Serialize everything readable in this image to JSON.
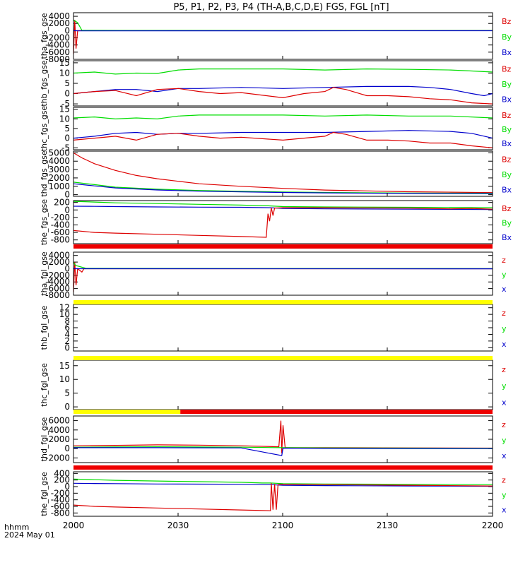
{
  "title": "P5, P1, P2, P3, P4 (TH-A,B,C,D,E) FGS, FGL [nT]",
  "x_axis": {
    "tick_labels": [
      "2000",
      "2030",
      "2100",
      "2130",
      "2200"
    ],
    "units_label": "hhmm",
    "date_label": "2024 May 01"
  },
  "colors": {
    "bx": "#0000cc",
    "by": "#00dd00",
    "bz": "#dd0000",
    "bar_red": "#ee0000",
    "bar_yellow": "#ffff00",
    "frame": "#000000"
  },
  "chart_data": [
    {
      "type": "line",
      "ylabel": "tha_fgs_gse",
      "yticks": [
        "4000",
        "2000",
        "0",
        "-2000",
        "-4000",
        "-6000",
        "-8000"
      ],
      "ylim": [
        -8000,
        5000
      ],
      "legend": [
        "Bz",
        "By",
        "Bx"
      ],
      "legend_colors": [
        "#dd0000",
        "#00dd00",
        "#0000cc"
      ],
      "series": [
        {
          "name": "Bz",
          "x": [
            0,
            0.003,
            0.006,
            0.01,
            0.015,
            1
          ],
          "y": [
            -6500,
            3000,
            -5000,
            0,
            0,
            0
          ]
        },
        {
          "name": "By",
          "x": [
            0,
            0.01,
            0.02,
            0.11,
            0.5,
            1
          ],
          "y": [
            3000,
            2200,
            100,
            60,
            30,
            40
          ]
        },
        {
          "name": "Bx",
          "x": [
            0,
            0.01,
            0.5,
            1
          ],
          "y": [
            0,
            -60,
            -40,
            -30
          ]
        }
      ]
    },
    {
      "type": "line",
      "ylabel": "thb_fgs_gse",
      "yticks": [
        "15",
        "10",
        "5",
        "0",
        "-5"
      ],
      "ylim": [
        -6,
        16
      ],
      "legend": [
        "Bz",
        "By",
        "Bx"
      ],
      "legend_colors": [
        "#dd0000",
        "#00dd00",
        "#0000cc"
      ],
      "series": [
        {
          "name": "By",
          "x": [
            0,
            0.05,
            0.1,
            0.15,
            0.2,
            0.25,
            0.3,
            0.4,
            0.5,
            0.6,
            0.7,
            0.8,
            0.9,
            0.95,
            1
          ],
          "y": [
            10,
            10.5,
            9.5,
            10,
            9.8,
            11.5,
            12,
            12,
            12,
            11.5,
            12,
            11.8,
            11.5,
            11,
            10.5
          ]
        },
        {
          "name": "Bx",
          "x": [
            0,
            0.05,
            0.1,
            0.15,
            0.2,
            0.25,
            0.3,
            0.4,
            0.5,
            0.6,
            0.7,
            0.8,
            0.85,
            0.9,
            0.95,
            0.98,
            1
          ],
          "y": [
            0,
            1,
            2,
            2,
            1,
            2.5,
            2.5,
            3,
            2.5,
            3,
            3.5,
            3.5,
            3,
            2,
            0,
            -1,
            0
          ]
        },
        {
          "name": "Bz",
          "x": [
            0,
            0.05,
            0.1,
            0.15,
            0.2,
            0.25,
            0.3,
            0.35,
            0.4,
            0.5,
            0.55,
            0.6,
            0.62,
            0.65,
            0.7,
            0.75,
            0.8,
            0.85,
            0.9,
            0.95,
            1
          ],
          "y": [
            0,
            1,
            1.5,
            -1,
            2,
            2.5,
            1,
            0,
            0.5,
            -2,
            0,
            1,
            3,
            2,
            -1,
            -1,
            -1.5,
            -2.5,
            -3,
            -4.5,
            -5
          ]
        }
      ]
    },
    {
      "type": "line",
      "ylabel": "thc_fgs_gse",
      "yticks": [
        "15",
        "10",
        "5",
        "0",
        "-5"
      ],
      "ylim": [
        -6,
        16
      ],
      "legend": [
        "Bz",
        "By",
        "Bx"
      ],
      "legend_colors": [
        "#dd0000",
        "#00dd00",
        "#0000cc"
      ],
      "series": [
        {
          "name": "By",
          "x": [
            0,
            0.05,
            0.1,
            0.15,
            0.2,
            0.25,
            0.3,
            0.4,
            0.5,
            0.6,
            0.7,
            0.8,
            0.9,
            1
          ],
          "y": [
            10.5,
            11,
            10,
            10.5,
            10,
            11.5,
            12,
            12,
            12,
            11.5,
            12,
            11.5,
            11.5,
            10.5
          ]
        },
        {
          "name": "Bx",
          "x": [
            0,
            0.05,
            0.1,
            0.15,
            0.2,
            0.25,
            0.3,
            0.4,
            0.5,
            0.6,
            0.7,
            0.8,
            0.9,
            0.95,
            1
          ],
          "y": [
            0,
            1,
            2.5,
            3,
            2,
            2.5,
            2.5,
            3,
            3,
            3,
            3.5,
            4,
            3.5,
            2.5,
            0
          ]
        },
        {
          "name": "Bz",
          "x": [
            0,
            0.05,
            0.1,
            0.15,
            0.2,
            0.25,
            0.3,
            0.35,
            0.4,
            0.5,
            0.55,
            0.6,
            0.62,
            0.65,
            0.7,
            0.75,
            0.8,
            0.85,
            0.9,
            0.95,
            1
          ],
          "y": [
            -1,
            0,
            1,
            -1,
            2,
            2.5,
            1,
            0,
            0.5,
            -1,
            0,
            1,
            3,
            2,
            -1,
            -1,
            -1.5,
            -2.5,
            -2.5,
            -4,
            -5
          ]
        }
      ]
    },
    {
      "type": "line",
      "ylabel": "thd_fgs_gse",
      "yticks": [
        "5000",
        "4000",
        "3000",
        "2000",
        "1000",
        "0"
      ],
      "ylim": [
        -200,
        5200
      ],
      "legend": [
        "Bz",
        "By",
        "Bx"
      ],
      "legend_colors": [
        "#dd0000",
        "#00dd00",
        "#0000cc"
      ],
      "series": [
        {
          "name": "Bz",
          "x": [
            0,
            0.02,
            0.05,
            0.1,
            0.15,
            0.2,
            0.25,
            0.3,
            0.4,
            0.5,
            0.6,
            0.7,
            0.8,
            0.9,
            1
          ],
          "y": [
            5000,
            4400,
            3700,
            2900,
            2300,
            1900,
            1600,
            1300,
            1000,
            750,
            550,
            450,
            350,
            300,
            250
          ]
        },
        {
          "name": "By",
          "x": [
            0,
            0.05,
            0.1,
            0.2,
            0.3,
            0.4,
            0.5,
            0.6,
            0.8,
            1
          ],
          "y": [
            1500,
            1200,
            900,
            650,
            500,
            400,
            320,
            260,
            200,
            170
          ]
        },
        {
          "name": "Bx",
          "x": [
            0,
            0.05,
            0.1,
            0.2,
            0.3,
            0.4,
            0.5,
            0.6,
            0.8,
            1
          ],
          "y": [
            1300,
            1050,
            800,
            560,
            420,
            330,
            260,
            210,
            150,
            120
          ]
        }
      ]
    },
    {
      "type": "line",
      "ylabel": "the_fgs_gse",
      "yticks": [
        "200",
        "0",
        "-200",
        "-400",
        "-600",
        "-800"
      ],
      "ylim": [
        -900,
        250
      ],
      "legend": [
        "Bz",
        "By",
        "Bx"
      ],
      "legend_colors": [
        "#dd0000",
        "#00dd00",
        "#0000cc"
      ],
      "series": [
        {
          "name": "By",
          "x": [
            0,
            0.05,
            0.1,
            0.2,
            0.3,
            0.4,
            0.45,
            0.465,
            0.5,
            0.6,
            0.8,
            1
          ],
          "y": [
            230,
            210,
            190,
            170,
            150,
            130,
            110,
            110,
            90,
            80,
            70,
            60
          ]
        },
        {
          "name": "Bx",
          "x": [
            0,
            0.05,
            0.1,
            0.2,
            0.3,
            0.4,
            0.47,
            0.5,
            0.6,
            0.8,
            1
          ],
          "y": [
            100,
            95,
            90,
            80,
            75,
            70,
            60,
            40,
            30,
            20,
            10
          ]
        },
        {
          "name": "Bz",
          "x": [
            0,
            0.05,
            0.1,
            0.2,
            0.3,
            0.4,
            0.46,
            0.464,
            0.468,
            0.472,
            0.476,
            0.48,
            0.5,
            0.6,
            0.8,
            0.9,
            0.95,
            1
          ],
          "y": [
            -550,
            -600,
            -620,
            -650,
            -680,
            -710,
            -730,
            -100,
            -300,
            60,
            -150,
            50,
            60,
            60,
            50,
            30,
            40,
            20
          ]
        }
      ]
    },
    {
      "type": "line",
      "ylabel": "tha_fgl_gse",
      "yticks": [
        "4000",
        "2000",
        "0",
        "-2000",
        "-4000",
        "-6000",
        "-8000"
      ],
      "ylim": [
        -8000,
        5000
      ],
      "legend": [
        "z",
        "y",
        "x"
      ],
      "legend_colors": [
        "#dd0000",
        "#00dd00",
        "#0000cc"
      ],
      "series": [
        {
          "name": "z",
          "x": [
            0,
            0.003,
            0.006,
            0.01,
            0.02,
            0.025,
            1
          ],
          "y": [
            -7000,
            2000,
            -5000,
            0,
            -1000,
            0,
            0
          ]
        },
        {
          "name": "y",
          "x": [
            0,
            0.005,
            0.03,
            0.4,
            1
          ],
          "y": [
            2000,
            1000,
            100,
            60,
            40
          ]
        },
        {
          "name": "x",
          "x": [
            0,
            1
          ],
          "y": [
            0,
            -20
          ]
        }
      ]
    },
    {
      "type": "line",
      "ylabel": "thb_fgl_gse",
      "yticks": [
        "12",
        "10",
        "8",
        "6",
        "4",
        "2",
        "0"
      ],
      "ylim": [
        -1,
        13
      ],
      "legend": [
        "z",
        "y",
        "x"
      ],
      "legend_colors": [
        "#dd0000",
        "#00dd00",
        "#0000cc"
      ],
      "series": []
    },
    {
      "type": "line",
      "ylabel": "thc_fgl_gse",
      "yticks": [
        "15",
        "10",
        "5",
        "0"
      ],
      "ylim": [
        -1,
        17
      ],
      "legend": [
        "z",
        "y",
        "x"
      ],
      "legend_colors": [
        "#dd0000",
        "#00dd00",
        "#0000cc"
      ],
      "series": []
    },
    {
      "type": "line",
      "ylabel": "thd_fgl_gse",
      "yticks": [
        "6000",
        "4000",
        "2000",
        "0",
        "-2000"
      ],
      "ylim": [
        -3000,
        7000
      ],
      "legend": [
        "z",
        "y",
        "x"
      ],
      "legend_colors": [
        "#dd0000",
        "#00dd00",
        "#0000cc"
      ],
      "series": [
        {
          "name": "z",
          "x": [
            0,
            0.1,
            0.2,
            0.3,
            0.4,
            0.49,
            0.495,
            0.497,
            0.5,
            0.505,
            0.6,
            0.8,
            1
          ],
          "y": [
            600,
            700,
            800,
            750,
            600,
            400,
            6000,
            -1000,
            5000,
            200,
            200,
            150,
            100
          ]
        },
        {
          "name": "y",
          "x": [
            0,
            0.1,
            0.2,
            0.3,
            0.4,
            0.5,
            0.6,
            0.8,
            1
          ],
          "y": [
            300,
            350,
            400,
            350,
            300,
            200,
            150,
            100,
            80
          ]
        },
        {
          "name": "x",
          "x": [
            0,
            0.2,
            0.4,
            0.497,
            0.5,
            0.6,
            0.8,
            1
          ],
          "y": [
            200,
            200,
            150,
            -1500,
            100,
            50,
            20,
            0
          ]
        }
      ]
    },
    {
      "type": "line",
      "ylabel": "the_fgl_gse",
      "yticks": [
        "400",
        "200",
        "0",
        "-200",
        "-400",
        "-600",
        "-800"
      ],
      "ylim": [
        -900,
        450
      ],
      "legend": [
        "z",
        "y",
        "x"
      ],
      "legend_colors": [
        "#dd0000",
        "#00dd00",
        "#0000cc"
      ],
      "series": [
        {
          "name": "y",
          "x": [
            0,
            0.05,
            0.1,
            0.2,
            0.3,
            0.4,
            0.45,
            0.47,
            0.5,
            0.6,
            0.8,
            1
          ],
          "y": [
            230,
            210,
            190,
            170,
            150,
            130,
            110,
            110,
            90,
            80,
            70,
            60
          ]
        },
        {
          "name": "x",
          "x": [
            0,
            0.05,
            0.1,
            0.2,
            0.3,
            0.4,
            0.47,
            0.5,
            0.6,
            0.8,
            1
          ],
          "y": [
            100,
            95,
            90,
            80,
            75,
            70,
            60,
            40,
            30,
            20,
            10
          ]
        },
        {
          "name": "z",
          "x": [
            0,
            0.05,
            0.1,
            0.2,
            0.3,
            0.4,
            0.47,
            0.472,
            0.476,
            0.48,
            0.484,
            0.488,
            0.5,
            0.6,
            0.8,
            1
          ],
          "y": [
            -560,
            -600,
            -620,
            -650,
            -680,
            -710,
            -730,
            100,
            -700,
            80,
            -700,
            60,
            70,
            60,
            40,
            20
          ]
        }
      ]
    }
  ],
  "status_bars": [
    {
      "color": "#ee0000",
      "from": 0,
      "to": 1
    },
    {
      "color": "#ffff00",
      "from": 0,
      "to": 1
    },
    {
      "color": "#ffff00",
      "from": 0,
      "to": 1
    },
    {
      "color": "#ffff00",
      "from": 0,
      "to": 0.255
    },
    {
      "color": "#ee0000",
      "from": 0.255,
      "to": 1
    },
    {
      "color": "#ee0000",
      "from": 0,
      "to": 1
    }
  ]
}
